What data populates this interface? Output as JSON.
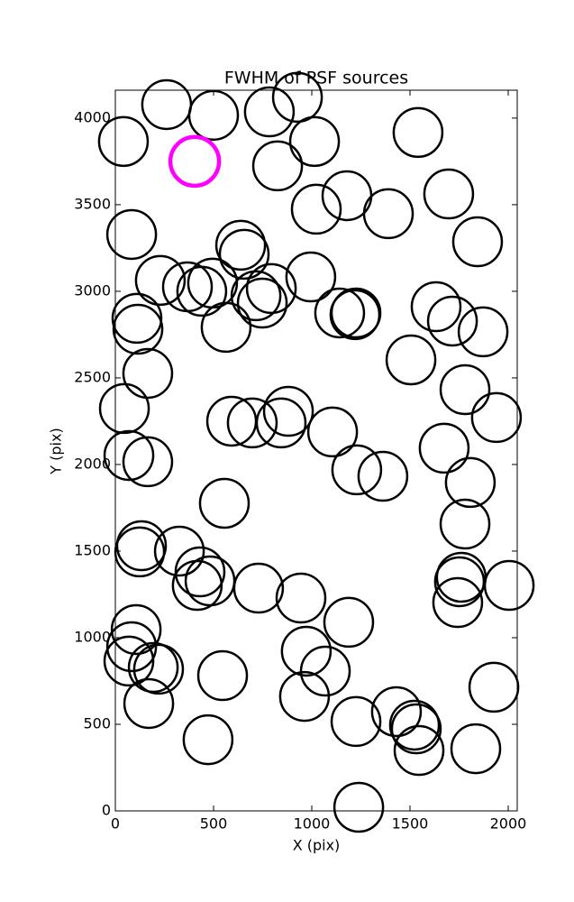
{
  "chart_data": {
    "type": "scatter",
    "title": "FWHM of PSF sources",
    "x_label": "X (pix)",
    "y_label": "Y (pix)",
    "xlim": [
      0,
      2046
    ],
    "ylim": [
      0,
      4161
    ],
    "xticks": [
      0,
      500,
      1000,
      1500,
      2000
    ],
    "yticks": [
      0,
      500,
      1000,
      1500,
      2000,
      2500,
      3000,
      3500,
      4000
    ],
    "series": [
      {
        "color": "#000000",
        "x": [
          41,
          261,
          500,
          784,
          927,
          1014,
          826,
          1541,
          83,
          1023,
          1179,
          1390,
          1697,
          1844,
          638,
          656,
          229,
          367,
          440,
          495,
          716,
          794,
          748,
          995,
          110,
          115,
          564,
          1142,
          1225,
          1220,
          1633,
          1716,
          1872,
          165,
          1505,
          46,
          1780,
          1940,
          881,
          592,
          697,
          844,
          1106,
          69,
          165,
          1229,
          1362,
          1674,
          1807,
          555,
          1780,
          124,
          133,
          326,
          431,
          417,
          482,
          729,
          945,
          1188,
          1761,
          1752,
          1743,
          2005,
          106,
          83,
          69,
          193,
          220,
          972,
          1069,
          546,
          963,
          1927,
          170,
          472,
          1225,
          1431,
          1523,
          1532,
          1546,
          1835,
          1239
        ],
        "values": [
          3865,
          4078,
          4016,
          4036,
          4120,
          3865,
          3724,
          3917,
          3328,
          3474,
          3552,
          3448,
          3562,
          3286,
          3266,
          3214,
          3063,
          3026,
          3000,
          3047,
          2974,
          3016,
          2932,
          3083,
          2844,
          2781,
          2792,
          2875,
          2875,
          2865,
          2911,
          2828,
          2766,
          2526,
          2604,
          2323,
          2432,
          2271,
          2307,
          2250,
          2240,
          2240,
          2188,
          2052,
          2016,
          1969,
          1932,
          2094,
          1896,
          1776,
          1656,
          1495,
          1531,
          1500,
          1380,
          1302,
          1328,
          1286,
          1229,
          1089,
          1349,
          1323,
          1203,
          1302,
          1047,
          948,
          865,
          828,
          818,
          922,
          807,
          781,
          661,
          714,
          620,
          411,
          516,
          573,
          495,
          474,
          349,
          359,
          21
        ]
      },
      {
        "color": "#ff00ff",
        "x": [
          404
        ],
        "values": [
          3750
        ]
      }
    ]
  }
}
